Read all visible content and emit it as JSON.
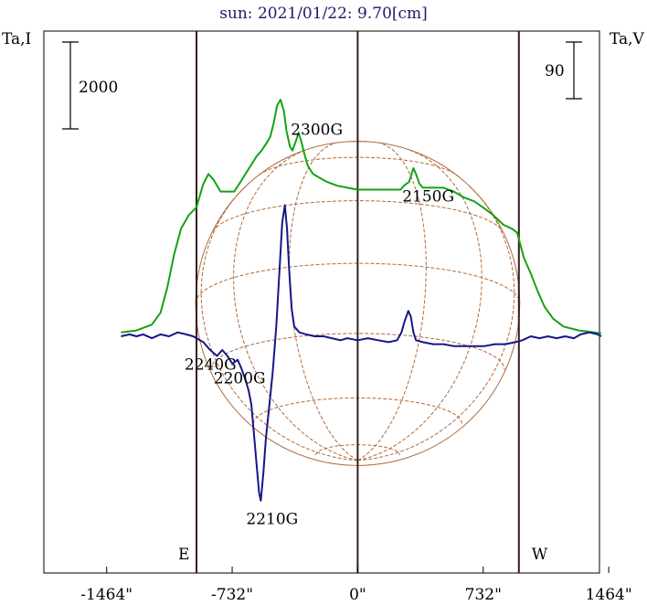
{
  "chart_data": {
    "type": "line",
    "title": "sun: 2021/01/22: 9.70[cm]",
    "left_axis_label": "Ta,I",
    "right_axis_label": "Ta,V",
    "xlim": [
      -1830,
      1410
    ],
    "x_ticks": [
      -1464,
      -732,
      0,
      732,
      1464
    ],
    "x_tick_labels": [
      "-1464\"",
      "-732\"",
      "0\"",
      "732\"",
      "1464\""
    ],
    "limb_labels": {
      "east": "E",
      "west": "W"
    },
    "limb_x": [
      -940,
      940
    ],
    "scale_bars": [
      {
        "value": 2000,
        "label": "2000",
        "side": "left"
      },
      {
        "value": 90,
        "label": "90",
        "side": "right"
      }
    ],
    "disk": {
      "radius": 945,
      "grid": "latitude-longitude",
      "color": "#b06b3a"
    },
    "colors": {
      "intensity": "#13a313",
      "polarization": "#16168a",
      "limb_lines": "#3a1a1a",
      "disk": "#b06b3a",
      "title": "#1a1a6e"
    },
    "series": [
      {
        "key": "intensity",
        "color": "#13a313",
        "points": [
          [
            -1380,
            0.02
          ],
          [
            -1290,
            0.03
          ],
          [
            -1200,
            0.06
          ],
          [
            -1150,
            0.12
          ],
          [
            -1110,
            0.25
          ],
          [
            -1070,
            0.42
          ],
          [
            -1030,
            0.55
          ],
          [
            -985,
            0.62
          ],
          [
            -940,
            0.66
          ],
          [
            -900,
            0.78
          ],
          [
            -870,
            0.83
          ],
          [
            -840,
            0.8
          ],
          [
            -800,
            0.74
          ],
          [
            -760,
            0.74
          ],
          [
            -720,
            0.74
          ],
          [
            -690,
            0.78
          ],
          [
            -640,
            0.85
          ],
          [
            -590,
            0.92
          ],
          [
            -560,
            0.95
          ],
          [
            -530,
            0.99
          ],
          [
            -510,
            1.02
          ],
          [
            -490,
            1.09
          ],
          [
            -470,
            1.18
          ],
          [
            -450,
            1.21
          ],
          [
            -430,
            1.15
          ],
          [
            -415,
            1.05
          ],
          [
            -395,
            0.97
          ],
          [
            -380,
            0.95
          ],
          [
            -360,
            1.0
          ],
          [
            -345,
            1.04
          ],
          [
            -330,
            1.0
          ],
          [
            -310,
            0.93
          ],
          [
            -290,
            0.87
          ],
          [
            -260,
            0.83
          ],
          [
            -220,
            0.81
          ],
          [
            -180,
            0.79
          ],
          [
            -120,
            0.77
          ],
          [
            -60,
            0.76
          ],
          [
            0,
            0.75
          ],
          [
            80,
            0.75
          ],
          [
            160,
            0.75
          ],
          [
            220,
            0.75
          ],
          [
            250,
            0.75
          ],
          [
            270,
            0.77
          ],
          [
            300,
            0.79
          ],
          [
            325,
            0.86
          ],
          [
            340,
            0.83
          ],
          [
            360,
            0.78
          ],
          [
            380,
            0.76
          ],
          [
            430,
            0.76
          ],
          [
            500,
            0.76
          ],
          [
            560,
            0.74
          ],
          [
            620,
            0.71
          ],
          [
            680,
            0.69
          ],
          [
            730,
            0.66
          ],
          [
            790,
            0.62
          ],
          [
            850,
            0.57
          ],
          [
            900,
            0.55
          ],
          [
            930,
            0.53
          ],
          [
            970,
            0.4
          ],
          [
            1010,
            0.32
          ],
          [
            1050,
            0.23
          ],
          [
            1090,
            0.15
          ],
          [
            1140,
            0.09
          ],
          [
            1200,
            0.05
          ],
          [
            1290,
            0.03
          ],
          [
            1380,
            0.02
          ],
          [
            1420,
            0.015
          ]
        ]
      },
      {
        "key": "polarization",
        "color": "#16168a",
        "points": [
          [
            -1380,
            0.0
          ],
          [
            -1330,
            0.01
          ],
          [
            -1290,
            0.0
          ],
          [
            -1250,
            0.01
          ],
          [
            -1200,
            -0.01
          ],
          [
            -1150,
            0.01
          ],
          [
            -1100,
            0.0
          ],
          [
            -1050,
            0.02
          ],
          [
            -1000,
            0.01
          ],
          [
            -960,
            0.0
          ],
          [
            -940,
            -0.01
          ],
          [
            -900,
            -0.03
          ],
          [
            -860,
            -0.07
          ],
          [
            -820,
            -0.1
          ],
          [
            -790,
            -0.07
          ],
          [
            -760,
            -0.1
          ],
          [
            -730,
            -0.14
          ],
          [
            -700,
            -0.12
          ],
          [
            -680,
            -0.16
          ],
          [
            -655,
            -0.22
          ],
          [
            -635,
            -0.28
          ],
          [
            -620,
            -0.35
          ],
          [
            -605,
            -0.5
          ],
          [
            -590,
            -0.65
          ],
          [
            -575,
            -0.8
          ],
          [
            -565,
            -0.84
          ],
          [
            -550,
            -0.7
          ],
          [
            -535,
            -0.52
          ],
          [
            -515,
            -0.35
          ],
          [
            -495,
            -0.18
          ],
          [
            -475,
            0.05
          ],
          [
            -455,
            0.35
          ],
          [
            -440,
            0.58
          ],
          [
            -425,
            0.67
          ],
          [
            -412,
            0.55
          ],
          [
            -400,
            0.35
          ],
          [
            -385,
            0.14
          ],
          [
            -370,
            0.05
          ],
          [
            -340,
            0.02
          ],
          [
            -300,
            0.01
          ],
          [
            -250,
            0.0
          ],
          [
            -200,
            0.0
          ],
          [
            -150,
            -0.01
          ],
          [
            -100,
            -0.02
          ],
          [
            -60,
            -0.01
          ],
          [
            0,
            -0.02
          ],
          [
            60,
            -0.01
          ],
          [
            120,
            -0.02
          ],
          [
            180,
            -0.03
          ],
          [
            230,
            -0.02
          ],
          [
            255,
            0.02
          ],
          [
            275,
            0.08
          ],
          [
            295,
            0.13
          ],
          [
            310,
            0.1
          ],
          [
            325,
            0.02
          ],
          [
            340,
            -0.02
          ],
          [
            380,
            -0.03
          ],
          [
            440,
            -0.04
          ],
          [
            500,
            -0.04
          ],
          [
            560,
            -0.05
          ],
          [
            620,
            -0.05
          ],
          [
            680,
            -0.05
          ],
          [
            740,
            -0.05
          ],
          [
            800,
            -0.04
          ],
          [
            860,
            -0.04
          ],
          [
            920,
            -0.03
          ],
          [
            960,
            -0.02
          ],
          [
            1010,
            0.0
          ],
          [
            1060,
            -0.01
          ],
          [
            1110,
            0.0
          ],
          [
            1160,
            -0.01
          ],
          [
            1210,
            0.0
          ],
          [
            1260,
            -0.01
          ],
          [
            1300,
            0.01
          ],
          [
            1350,
            0.02
          ],
          [
            1400,
            0.01
          ],
          [
            1420,
            0.0
          ]
        ]
      }
    ],
    "annotations": [
      {
        "text": "2300G",
        "x": -390,
        "level": 1.03,
        "color": "#000000"
      },
      {
        "text": "2150G",
        "x": 260,
        "level": 0.69,
        "color": "#000000"
      },
      {
        "text": "2240G",
        "x": -1010,
        "level": -0.17,
        "color": "#000000"
      },
      {
        "text": "2200G",
        "x": -840,
        "level": -0.24,
        "color": "#000000"
      },
      {
        "text": "2210G",
        "x": -650,
        "level": -0.96,
        "color": "#000000"
      }
    ]
  }
}
